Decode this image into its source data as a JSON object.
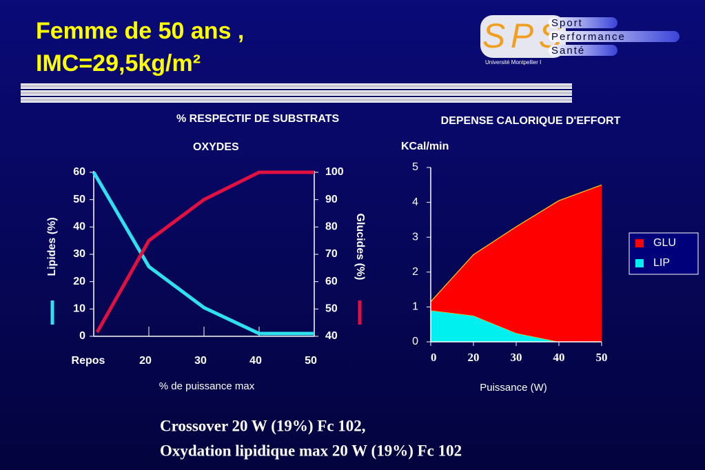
{
  "header": {
    "title_lines": [
      "Femme de 50 ans ,",
      "IMC=29,5kg/m²"
    ]
  },
  "logo": {
    "letters": "SPS",
    "words": [
      "Sport",
      "Performance",
      "Santé"
    ],
    "university": "Université Montpellier I"
  },
  "chart_data": [
    {
      "type": "line",
      "title": "% RESPECTIF DE SUBSTRATS",
      "subtitle": "OXYDES",
      "x_label": "% de puissance max",
      "y_label": "Lipides (%)",
      "y2_label": "Glucides (%)",
      "categories": [
        "Repos",
        "20",
        "30",
        "40",
        "50"
      ],
      "ylim": [
        0,
        60
      ],
      "yticks": [
        0,
        10,
        20,
        30,
        40,
        50,
        60
      ],
      "y2lim": [
        40,
        100
      ],
      "y2ticks": [
        40,
        50,
        60,
        70,
        80,
        90,
        100
      ],
      "series": [
        {
          "name": "Lipides",
          "color": "#2fe0ee",
          "values": [
            60,
            25.5,
            10.5,
            1,
            1
          ]
        },
        {
          "name": "Glucides",
          "color": "#e01040",
          "axis": "y2",
          "values": [
            41.5,
            75,
            90,
            100,
            100
          ]
        }
      ]
    },
    {
      "type": "stacked_area",
      "title": "DEPENSE CALORIQUE D'EFFORT",
      "y_label": "KCal/min",
      "x_label": "Puissance (W)",
      "categories": [
        "0",
        "20",
        "30",
        "40",
        "50"
      ],
      "ylim": [
        0,
        5
      ],
      "yticks": [
        0,
        1,
        2,
        3,
        4,
        5
      ],
      "legend": "right",
      "series": [
        {
          "name": "LIP",
          "color": "#00f0f0",
          "values": [
            0.9,
            0.75,
            0.25,
            0,
            0
          ]
        },
        {
          "name": "GLU",
          "color": "#ff0000",
          "values": [
            0.25,
            1.75,
            3.05,
            4.05,
            4.5
          ]
        }
      ]
    }
  ],
  "footer": {
    "lines": [
      "Crossover  20 W (19%) Fc 102,",
      "Oxydation lipidique max 20 W (19%)  Fc 102"
    ]
  }
}
